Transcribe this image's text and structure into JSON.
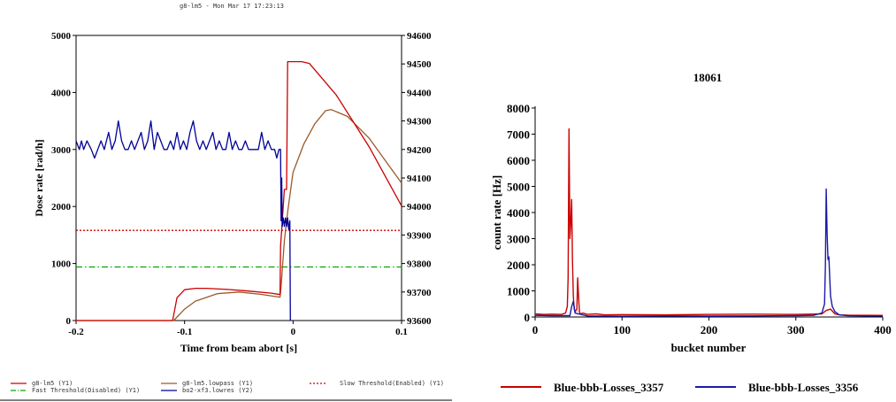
{
  "chart_data": [
    {
      "type": "line",
      "title": "g8-lm5 - Mon Mar 17 17:23:13",
      "xlabel": "Time from beam abort [s]",
      "ylabel": "Dose rate [rad/h]",
      "xlim": [
        -0.2,
        0.1
      ],
      "ylim": [
        0,
        5000
      ],
      "y2lim": [
        93600,
        94600
      ],
      "xticks": [
        "-0.2",
        "-0.1",
        "0",
        "0.1"
      ],
      "yticks": [
        "0",
        "1000",
        "2000",
        "3000",
        "4000",
        "5000"
      ],
      "y2ticks": [
        "93600",
        "93700",
        "93800",
        "93900",
        "94000",
        "94100",
        "94200",
        "94300",
        "94400",
        "94500",
        "94600"
      ],
      "grid": false,
      "legend_position": "bottom",
      "series": [
        {
          "name": "g8-lm5 (Y1)",
          "color": "#cc0000",
          "axis": "y1",
          "x": [
            -0.2,
            -0.111,
            -0.107,
            -0.1,
            -0.09,
            -0.08,
            -0.06,
            -0.04,
            -0.02,
            -0.012,
            -0.0115,
            -0.008,
            -0.006,
            -0.005,
            0.0,
            0.008,
            0.015,
            0.04,
            0.07,
            0.1
          ],
          "y": [
            0,
            0,
            400,
            540,
            565,
            565,
            545,
            515,
            480,
            455,
            1300,
            2300,
            2300,
            4540,
            4540,
            4540,
            4510,
            3950,
            3050,
            2010
          ]
        },
        {
          "name": "g8-lm5.lowpass (Y1)",
          "color": "#9b5a2a",
          "axis": "y1",
          "x": [
            -0.2,
            -0.11,
            -0.1,
            -0.09,
            -0.07,
            -0.05,
            -0.03,
            -0.012,
            -0.011,
            -0.008,
            -0.005,
            0.0,
            0.01,
            0.02,
            0.03,
            0.035,
            0.05,
            0.07,
            0.1
          ],
          "y": [
            0,
            0,
            200,
            340,
            470,
            500,
            460,
            410,
            600,
            1400,
            1900,
            2600,
            3100,
            3450,
            3680,
            3700,
            3580,
            3200,
            2410
          ]
        },
        {
          "name": "bo2-xf3.lowres (Y2)",
          "color": "#000099",
          "axis": "y2",
          "x": [
            -0.2,
            -0.197,
            -0.195,
            -0.193,
            -0.19,
            -0.186,
            -0.183,
            -0.18,
            -0.177,
            -0.174,
            -0.17,
            -0.167,
            -0.164,
            -0.161,
            -0.158,
            -0.155,
            -0.152,
            -0.149,
            -0.146,
            -0.143,
            -0.14,
            -0.137,
            -0.134,
            -0.131,
            -0.128,
            -0.125,
            -0.122,
            -0.119,
            -0.116,
            -0.113,
            -0.11,
            -0.107,
            -0.104,
            -0.101,
            -0.098,
            -0.095,
            -0.092,
            -0.089,
            -0.086,
            -0.083,
            -0.08,
            -0.077,
            -0.074,
            -0.071,
            -0.068,
            -0.065,
            -0.062,
            -0.059,
            -0.056,
            -0.053,
            -0.05,
            -0.047,
            -0.044,
            -0.041,
            -0.038,
            -0.035,
            -0.032,
            -0.029,
            -0.026,
            -0.023,
            -0.02,
            -0.017,
            -0.015,
            -0.013,
            -0.0115,
            -0.011,
            -0.0105,
            -0.01,
            -0.009,
            -0.008,
            -0.007,
            -0.006,
            -0.005,
            -0.004,
            -0.003,
            -0.0025
          ],
          "y": [
            94230,
            94200,
            94230,
            94200,
            94230,
            94200,
            94170,
            94200,
            94230,
            94200,
            94260,
            94200,
            94230,
            94300,
            94230,
            94200,
            94200,
            94230,
            94200,
            94230,
            94260,
            94200,
            94230,
            94300,
            94200,
            94260,
            94230,
            94200,
            94200,
            94230,
            94200,
            94260,
            94200,
            94230,
            94200,
            94260,
            94300,
            94230,
            94200,
            94230,
            94200,
            94230,
            94260,
            94200,
            94230,
            94200,
            94200,
            94260,
            94200,
            94230,
            94200,
            94200,
            94230,
            94200,
            94200,
            94200,
            94200,
            94260,
            94200,
            94230,
            94200,
            94200,
            94170,
            94200,
            94200,
            93950,
            94100,
            93930,
            93960,
            93930,
            93960,
            93930,
            93960,
            93920,
            93950,
            93600
          ]
        },
        {
          "name": "Slow Threshold(Enabled) (Y1)",
          "color": "#cc0000",
          "axis": "y1",
          "dash": "dotted",
          "x": [
            -0.2,
            0.1
          ],
          "y": [
            1580,
            1580
          ]
        },
        {
          "name": "Fast Threshold(Disabled) (Y1)",
          "color": "#00aa00",
          "axis": "y1",
          "dash": "dashdot",
          "x": [
            -0.2,
            0.1
          ],
          "y": [
            940,
            940
          ]
        }
      ]
    },
    {
      "type": "line",
      "title": "18061",
      "xlabel": "bucket number",
      "ylabel": "count rate [Hz]",
      "xlim": [
        0,
        400
      ],
      "ylim": [
        0,
        8000
      ],
      "xticks": [
        "0",
        "100",
        "200",
        "300",
        "400"
      ],
      "yticks": [
        "0",
        "1000",
        "2000",
        "3000",
        "4000",
        "5000",
        "6000",
        "7000",
        "8000"
      ],
      "grid": false,
      "legend_position": "bottom",
      "series": [
        {
          "name": "Blue-bbb-Losses_3357",
          "color": "#cc0000",
          "x": [
            0,
            10,
            20,
            30,
            35,
            37,
            38,
            39,
            40,
            41,
            42,
            43,
            44,
            45,
            46,
            48,
            49,
            50,
            51,
            52,
            55,
            60,
            70,
            80,
            100,
            150,
            200,
            250,
            300,
            330,
            335,
            340,
            345,
            350,
            360,
            400
          ],
          "y": [
            120,
            100,
            110,
            100,
            150,
            400,
            1500,
            7200,
            3000,
            3600,
            4500,
            2200,
            800,
            300,
            200,
            300,
            1500,
            800,
            200,
            120,
            150,
            100,
            120,
            80,
            90,
            80,
            100,
            110,
            100,
            120,
            250,
            300,
            120,
            80,
            70,
            60
          ]
        },
        {
          "name": "Blue-bbb-Losses_3356",
          "color": "#1a1aa8",
          "x": [
            0,
            20,
            40,
            42,
            44,
            46,
            60,
            100,
            150,
            200,
            250,
            300,
            320,
            330,
            333,
            334,
            335,
            336,
            337,
            338,
            339,
            340,
            342,
            345,
            350,
            360,
            380,
            400
          ],
          "y": [
            60,
            50,
            50,
            400,
            600,
            150,
            40,
            30,
            40,
            35,
            40,
            50,
            60,
            150,
            500,
            2000,
            4900,
            3200,
            2200,
            2300,
            1500,
            800,
            400,
            200,
            80,
            50,
            40,
            40
          ]
        }
      ]
    }
  ]
}
